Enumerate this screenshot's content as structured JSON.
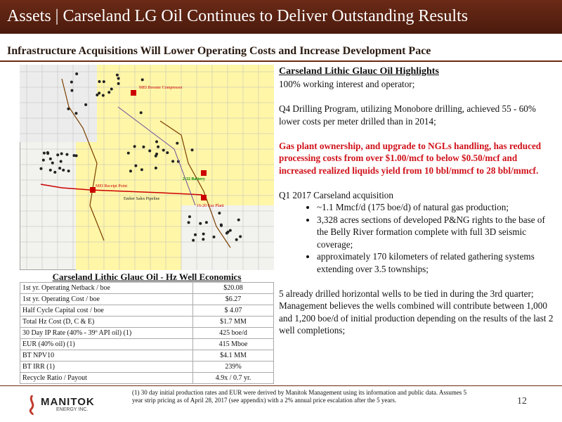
{
  "header": {
    "title": "Assets | Carseland LG Oil Continues to Deliver Outstanding Results",
    "subtitle": "Infrastructure Acquisitions Will Lower Operating Costs and Increase Development Pace"
  },
  "map": {
    "labels": [
      "MEI Booster Compressor",
      "2-32 Battery",
      "MEI Receipt Point",
      "Ember Sales Pipeline",
      "16-20 Gas Plant"
    ]
  },
  "table": {
    "title": "Carseland Lithic Glauc Oil - Hz Well Economics",
    "rows": [
      [
        "1st yr. Operating Netback / boe",
        "$20.08"
      ],
      [
        "1st yr. Operating Cost / boe",
        "$6.27"
      ],
      [
        "Half Cycle Capital cost / boe",
        "$ 4.07"
      ],
      [
        "Total Hz Cost (D, C & E)",
        "$1.7 MM"
      ],
      [
        "30 Day IP Rate (40% - 39º API oil) (1)",
        "425 boe/d"
      ],
      [
        "EUR (40% oil) (1)",
        "415 Mboe"
      ],
      [
        "BT NPV10",
        "$4.1 MM"
      ],
      [
        "BT IRR (1)",
        "239%"
      ],
      [
        "Recycle Ratio / Payout",
        "4.9x / 0.7 yr."
      ]
    ]
  },
  "highlights": {
    "heading": "Carseland Lithic Glauc Oil Highlights",
    "ownership": "100% working interest and operator;",
    "drilling": "Q4 Drilling Program, utilizing Monobore drilling, achieved 55 - 60% lower costs per meter drilled than in 2014;",
    "emphasis": "Gas plant ownership, and upgrade to NGLs handling, has reduced processing costs from over $1.00/mcf to below $0.50/mcf and increased realized liquids yield from 10 bbl/mmcf to 28 bbl/mmcf.",
    "acquisition": {
      "intro": "Q1 2017 Carseland acquisition",
      "bullets": [
        "~1.1 Mmcf/d (175 boe/d) of natural gas production;",
        "3,328 acres sections of developed P&NG rights to the base of the Belly River formation complete with full 3D seismic coverage;",
        "approximately 170 kilometers of related gathering systems extending over 3.5 townships;"
      ]
    },
    "closing": "5 already drilled horizontal wells to be tied in during the 3rd quarter; Management believes the wells combined will contribute between 1,000 and 1,200 boe/d of initial production depending on the results of the last 2 well completions;"
  },
  "footer": {
    "footnote": "(1) 30 day initial production rates and EUR were derived by Manitok Management using its information and public data. Assumes 5 year strip pricing as of April 28, 2017 (see appendix) with a 2% annual price escalation after the 5 years.",
    "logo": "MANITOK",
    "logo_sub": "ENERGY INC.",
    "page": "12"
  }
}
